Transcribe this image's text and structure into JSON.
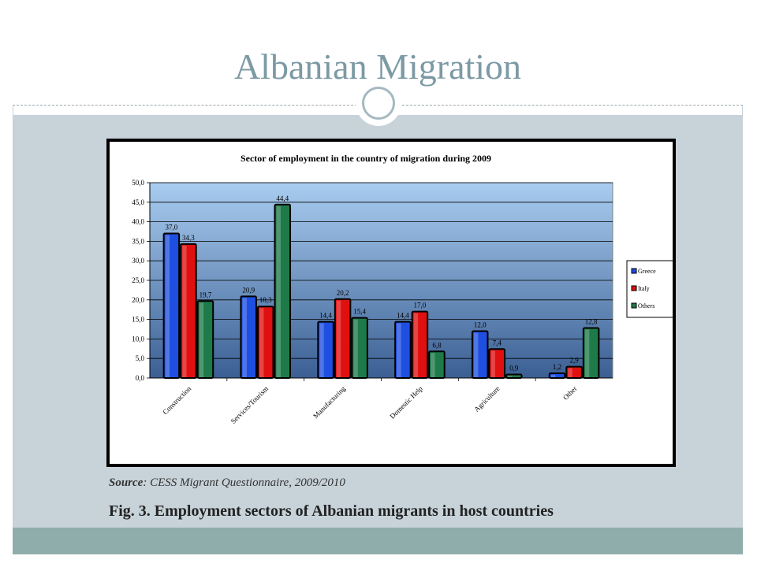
{
  "slide": {
    "title": "Albanian Migration",
    "source_label": "Source",
    "source_text": ": CESS Migrant Questionnaire, 2009/2010",
    "caption": "Fig. 3. Employment sectors of Albanian migrants in host countries"
  },
  "colors": {
    "title": "#7c9aa4",
    "content_bg": "#c7d2d9",
    "footer_band": "#8fadab",
    "plot_top": "#a9cdf0",
    "plot_bottom": "#3b5f93"
  },
  "chart_data": {
    "type": "bar",
    "title": "Sector of employment in the country of migration during 2009",
    "categories": [
      "Construction",
      "Services/Tourism",
      "Manufacturing",
      "Domestic Help",
      "Agriculture",
      "Other"
    ],
    "series": [
      {
        "name": "Greece",
        "color": "#1f4fe0",
        "values": [
          37.0,
          20.9,
          14.4,
          14.4,
          12.0,
          1.2
        ],
        "labels": [
          "37,0",
          "20,9",
          "14,4",
          "14,4",
          "12,0",
          "1,2"
        ]
      },
      {
        "name": "Italy",
        "color": "#e01010",
        "values": [
          34.3,
          18.3,
          20.2,
          17.0,
          7.4,
          2.9
        ],
        "labels": [
          "34,3",
          "18,3",
          "20,2",
          "17,0",
          "7,4",
          "2,9"
        ]
      },
      {
        "name": "Others",
        "color": "#1f7a4a",
        "values": [
          19.7,
          44.4,
          15.4,
          6.8,
          0.9,
          12.8
        ],
        "labels": [
          "19,7",
          "44,4",
          "15,4",
          "6,8",
          "0,9",
          "12,8"
        ]
      }
    ],
    "ylim": [
      0,
      50
    ],
    "yticks": [
      "0,0",
      "5,0",
      "10,0",
      "15,0",
      "20,0",
      "25,0",
      "30,0",
      "35,0",
      "40,0",
      "45,0",
      "50,0"
    ],
    "grid": true,
    "legend_position": "right"
  }
}
